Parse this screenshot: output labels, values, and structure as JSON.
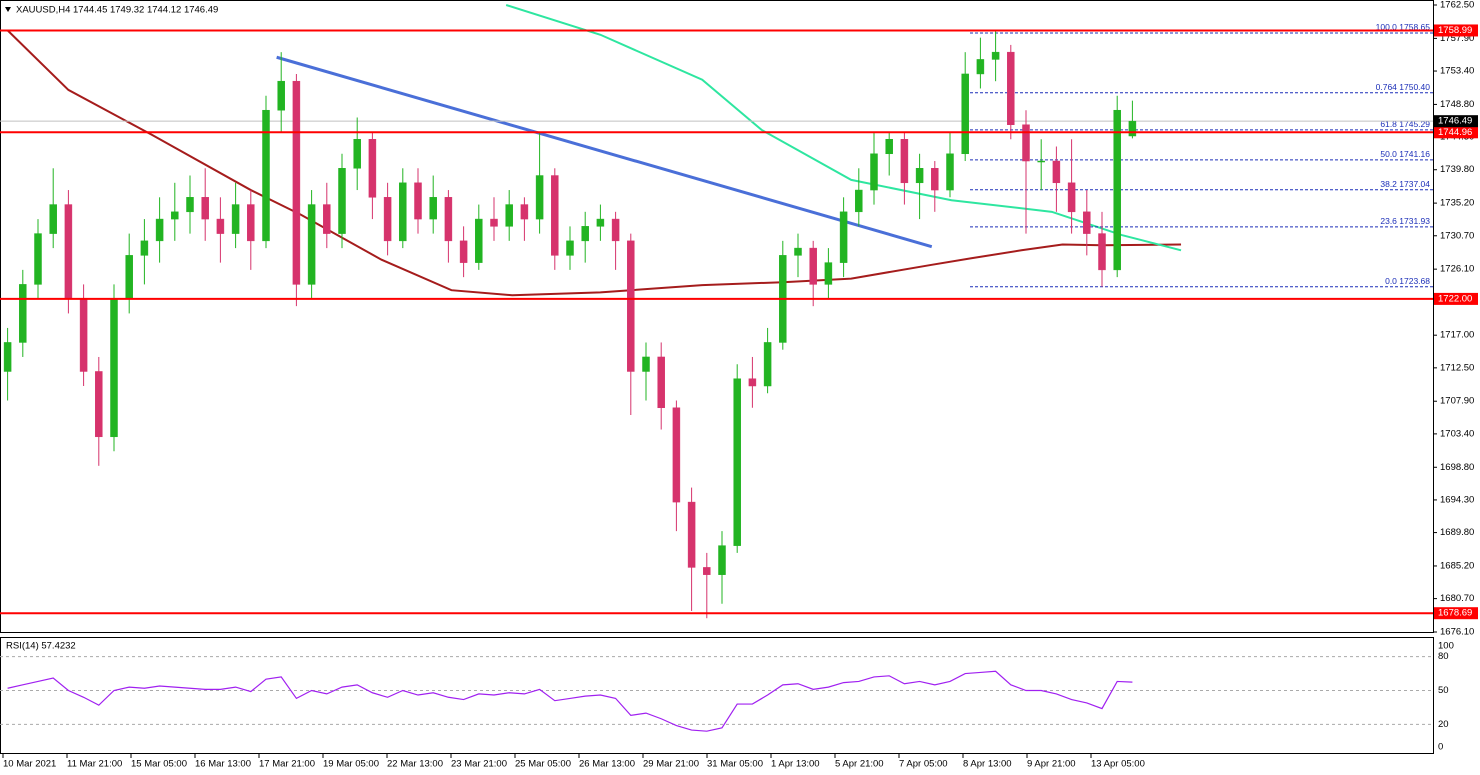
{
  "chart_data": {
    "type": "candlestick",
    "title": "XAUUSD,H4  1744.45 1749.32 1744.12 1746.49",
    "up_color": "#22b422",
    "down_color": "#d6336c",
    "ylim": [
      1676.1,
      1762.5
    ],
    "yticks": [
      {
        "value": 1762.5,
        "label": "1762.50"
      },
      {
        "value": 1757.9,
        "label": "1757.90"
      },
      {
        "value": 1753.4,
        "label": "1753.40"
      },
      {
        "value": 1748.8,
        "label": "1748.80"
      },
      {
        "value": 1744.3,
        "label": "1744.30"
      },
      {
        "value": 1739.8,
        "label": "1739.80"
      },
      {
        "value": 1735.2,
        "label": "1735.20"
      },
      {
        "value": 1730.7,
        "label": "1730.70"
      },
      {
        "value": 1726.1,
        "label": "1726.10"
      },
      {
        "value": 1717.0,
        "label": "1717.00"
      },
      {
        "value": 1712.5,
        "label": "1712.50"
      },
      {
        "value": 1707.9,
        "label": "1707.90"
      },
      {
        "value": 1703.4,
        "label": "1703.40"
      },
      {
        "value": 1698.8,
        "label": "1698.80"
      },
      {
        "value": 1694.3,
        "label": "1694.30"
      },
      {
        "value": 1689.8,
        "label": "1689.80"
      },
      {
        "value": 1685.2,
        "label": "1685.20"
      },
      {
        "value": 1680.7,
        "label": "1680.70"
      },
      {
        "value": 1676.1,
        "label": "1676.10"
      }
    ],
    "x_labels": [
      "10 Mar 2021",
      "11 Mar 21:00",
      "15 Mar 05:00",
      "16 Mar 13:00",
      "17 Mar 21:00",
      "19 Mar 05:00",
      "22 Mar 13:00",
      "23 Mar 21:00",
      "25 Mar 05:00",
      "26 Mar 13:00",
      "29 Mar 21:00",
      "31 Mar 05:00",
      "1 Apr 13:00",
      "5 Apr 21:00",
      "7 Apr 05:00",
      "8 Apr 13:00",
      "9 Apr 21:00",
      "13 Apr 05:00"
    ],
    "ohlc": [
      [
        1712,
        1718,
        1708,
        1716
      ],
      [
        1716,
        1726,
        1714,
        1724
      ],
      [
        1724,
        1733,
        1722,
        1731
      ],
      [
        1731,
        1740,
        1729,
        1735
      ],
      [
        1735,
        1737,
        1720,
        1722
      ],
      [
        1722,
        1724,
        1710,
        1712
      ],
      [
        1712,
        1714,
        1699,
        1703
      ],
      [
        1703,
        1724,
        1701,
        1722
      ],
      [
        1722,
        1731,
        1720,
        1728
      ],
      [
        1728,
        1733,
        1724,
        1730
      ],
      [
        1730,
        1736,
        1727,
        1733
      ],
      [
        1733,
        1738,
        1730,
        1734
      ],
      [
        1734,
        1739,
        1731,
        1736
      ],
      [
        1736,
        1740,
        1730,
        1733
      ],
      [
        1733,
        1736,
        1727,
        1731
      ],
      [
        1731,
        1738,
        1729,
        1735
      ],
      [
        1735,
        1737,
        1726,
        1730
      ],
      [
        1730,
        1750,
        1729,
        1748
      ],
      [
        1748,
        1756,
        1745,
        1752
      ],
      [
        1752,
        1753,
        1721,
        1724
      ],
      [
        1724,
        1737,
        1722,
        1735
      ],
      [
        1735,
        1738,
        1729,
        1731
      ],
      [
        1731,
        1742,
        1729,
        1740
      ],
      [
        1740,
        1747,
        1737,
        1744
      ],
      [
        1744,
        1745,
        1733,
        1736
      ],
      [
        1736,
        1738,
        1728,
        1730
      ],
      [
        1730,
        1740,
        1729,
        1738
      ],
      [
        1738,
        1740,
        1731,
        1733
      ],
      [
        1733,
        1739,
        1731,
        1736
      ],
      [
        1736,
        1737,
        1727,
        1730
      ],
      [
        1730,
        1732,
        1725,
        1727
      ],
      [
        1727,
        1735,
        1726,
        1733
      ],
      [
        1733,
        1736,
        1730,
        1732
      ],
      [
        1732,
        1737,
        1730,
        1735
      ],
      [
        1735,
        1736,
        1730,
        1733
      ],
      [
        1733,
        1745,
        1731,
        1739
      ],
      [
        1739,
        1740,
        1726,
        1728
      ],
      [
        1728,
        1732,
        1726,
        1730
      ],
      [
        1730,
        1734,
        1727,
        1732
      ],
      [
        1732,
        1735,
        1730,
        1733
      ],
      [
        1733,
        1734,
        1726,
        1730
      ],
      [
        1730,
        1731,
        1706,
        1712
      ],
      [
        1712,
        1716,
        1708,
        1714
      ],
      [
        1714,
        1716,
        1704,
        1707
      ],
      [
        1707,
        1708,
        1690,
        1694
      ],
      [
        1694,
        1696,
        1679,
        1685
      ],
      [
        1685,
        1687,
        1678,
        1684
      ],
      [
        1684,
        1690,
        1680,
        1688
      ],
      [
        1688,
        1713,
        1687,
        1711
      ],
      [
        1711,
        1714,
        1707,
        1710
      ],
      [
        1710,
        1718,
        1709,
        1716
      ],
      [
        1716,
        1730,
        1715,
        1728
      ],
      [
        1728,
        1731,
        1725,
        1729
      ],
      [
        1729,
        1730,
        1721,
        1724
      ],
      [
        1724,
        1729,
        1722,
        1727
      ],
      [
        1727,
        1736,
        1725,
        1734
      ],
      [
        1734,
        1740,
        1732,
        1737
      ],
      [
        1737,
        1745,
        1735,
        1742
      ],
      [
        1742,
        1745,
        1739,
        1744
      ],
      [
        1744,
        1745,
        1735,
        1738
      ],
      [
        1738,
        1742,
        1733,
        1740
      ],
      [
        1740,
        1741,
        1734,
        1737
      ],
      [
        1737,
        1745,
        1736,
        1742
      ],
      [
        1742,
        1756,
        1741,
        1753
      ],
      [
        1753,
        1758,
        1751,
        1755
      ],
      [
        1755,
        1759,
        1752,
        1756
      ],
      [
        1756,
        1757,
        1744,
        1746
      ],
      [
        1746,
        1748,
        1731,
        1741
      ],
      [
        1741,
        1744,
        1737,
        1741
      ],
      [
        1741,
        1743,
        1734,
        1738
      ],
      [
        1738,
        1744,
        1731,
        1734
      ],
      [
        1734,
        1737,
        1728,
        1731
      ],
      [
        1731,
        1734,
        1723.68,
        1726
      ],
      [
        1726,
        1750,
        1725,
        1748
      ],
      [
        1744.45,
        1749.32,
        1744.12,
        1746.49
      ]
    ],
    "moving_averages": [
      {
        "color": "#a51c1c",
        "x": [
          0,
          4,
          9.5,
          16,
          19.3,
          24.6,
          29.2,
          33.2,
          39,
          45.7,
          51,
          55.5,
          60.8,
          63.4,
          66.7,
          69.4,
          72,
          77.2
        ],
        "values": [
          1759,
          1750.8,
          1744.6,
          1737,
          1733.6,
          1727.4,
          1723.2,
          1722.5,
          1722.9,
          1723.9,
          1724.3,
          1724.8,
          1726.7,
          1727.6,
          1728.7,
          1729.5,
          1729.4,
          1729.5
        ]
      },
      {
        "color": "#2ee6a0",
        "x": [
          32.8,
          39,
          45.7,
          49.6,
          55.5,
          62.1,
          68.7,
          73.3,
          77.2
        ],
        "values": [
          1762.5,
          1758.4,
          1752.2,
          1745.3,
          1738.4,
          1735.6,
          1734,
          1730.8,
          1728.7
        ]
      }
    ],
    "trendline": {
      "color": "#4a6fd8",
      "x": [
        17.7,
        60.8
      ],
      "values": [
        1755.3,
        1729.2
      ]
    },
    "level_color": "#ff0000",
    "levels": [
      1758.99,
      1744.96,
      {
        "value": 1722.0,
        "label": "1722.00"
      },
      1678.69
    ],
    "current_price": 1746.49,
    "fib_color": "#1c2fb8",
    "fib_levels": [
      {
        "value": 1758.65,
        "label": "100.0 1758.65"
      },
      {
        "value": 1750.4,
        "label": "0.764 1750.40"
      },
      {
        "value": 1745.29,
        "label": "61.8 1745.29"
      },
      {
        "value": 1741.16,
        "label": "50.0 1741.16"
      },
      {
        "value": 1737.04,
        "label": "38.2 1737.04"
      },
      {
        "value": 1731.93,
        "label": "23.6 1731.93"
      },
      {
        "value": 1723.68,
        "label": "0.0 1723.68"
      }
    ],
    "rsi": {
      "title": "RSI(14) 57.4232",
      "color": "#a020f0",
      "ylim": [
        0,
        100
      ],
      "yticks": [
        100,
        80,
        50,
        20,
        0
      ],
      "values": [
        52,
        55,
        58,
        61,
        50,
        44,
        37,
        50,
        53,
        52,
        54,
        53,
        52,
        51,
        51,
        53,
        49,
        60,
        62,
        43,
        50,
        47,
        53,
        55,
        48,
        44,
        50,
        46,
        48,
        44,
        42,
        47,
        46,
        48,
        47,
        51,
        41,
        43,
        45,
        46,
        43,
        28,
        30,
        25,
        19,
        15,
        14,
        17,
        38,
        38,
        46,
        55,
        56,
        51,
        53,
        57,
        58,
        62,
        63,
        56,
        58,
        55,
        58,
        65,
        66,
        67,
        55,
        50,
        50,
        47,
        42,
        39,
        34,
        58,
        57.4232
      ]
    }
  }
}
